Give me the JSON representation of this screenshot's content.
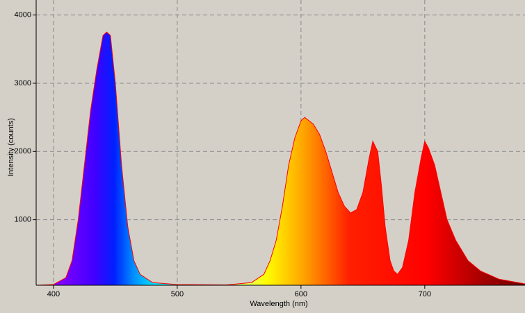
{
  "chart_data": {
    "type": "area",
    "x_label": "Wavelength (nm)",
    "y_label": "Intensity (counts)",
    "x": [
      386,
      400,
      410,
      415,
      420,
      425,
      430,
      435,
      440,
      443,
      446,
      450,
      455,
      460,
      465,
      470,
      480,
      500,
      540,
      560,
      570,
      575,
      580,
      585,
      590,
      595,
      600,
      603,
      610,
      615,
      620,
      625,
      630,
      635,
      640,
      645,
      650,
      655,
      658,
      662,
      665,
      668,
      672,
      675,
      678,
      682,
      687,
      692,
      697,
      700,
      703,
      708,
      713,
      718,
      725,
      735,
      745,
      760,
      781
    ],
    "values": [
      40,
      50,
      150,
      400,
      1000,
      1800,
      2600,
      3200,
      3700,
      3750,
      3700,
      3000,
      1800,
      900,
      400,
      200,
      80,
      50,
      45,
      80,
      200,
      400,
      700,
      1200,
      1800,
      2200,
      2450,
      2500,
      2400,
      2250,
      2000,
      1700,
      1400,
      1200,
      1100,
      1150,
      1400,
      1900,
      2150,
      2000,
      1500,
      900,
      400,
      250,
      200,
      300,
      700,
      1400,
      1900,
      2150,
      2050,
      1800,
      1400,
      1000,
      700,
      400,
      250,
      130,
      60
    ],
    "line_color": "#ff0000",
    "xlim": [
      386,
      781
    ],
    "ylim": [
      40,
      4220
    ],
    "xticks": [
      400,
      500,
      600,
      700
    ],
    "yticks": [
      1000,
      2000,
      3000,
      4000
    ],
    "grid": true
  }
}
